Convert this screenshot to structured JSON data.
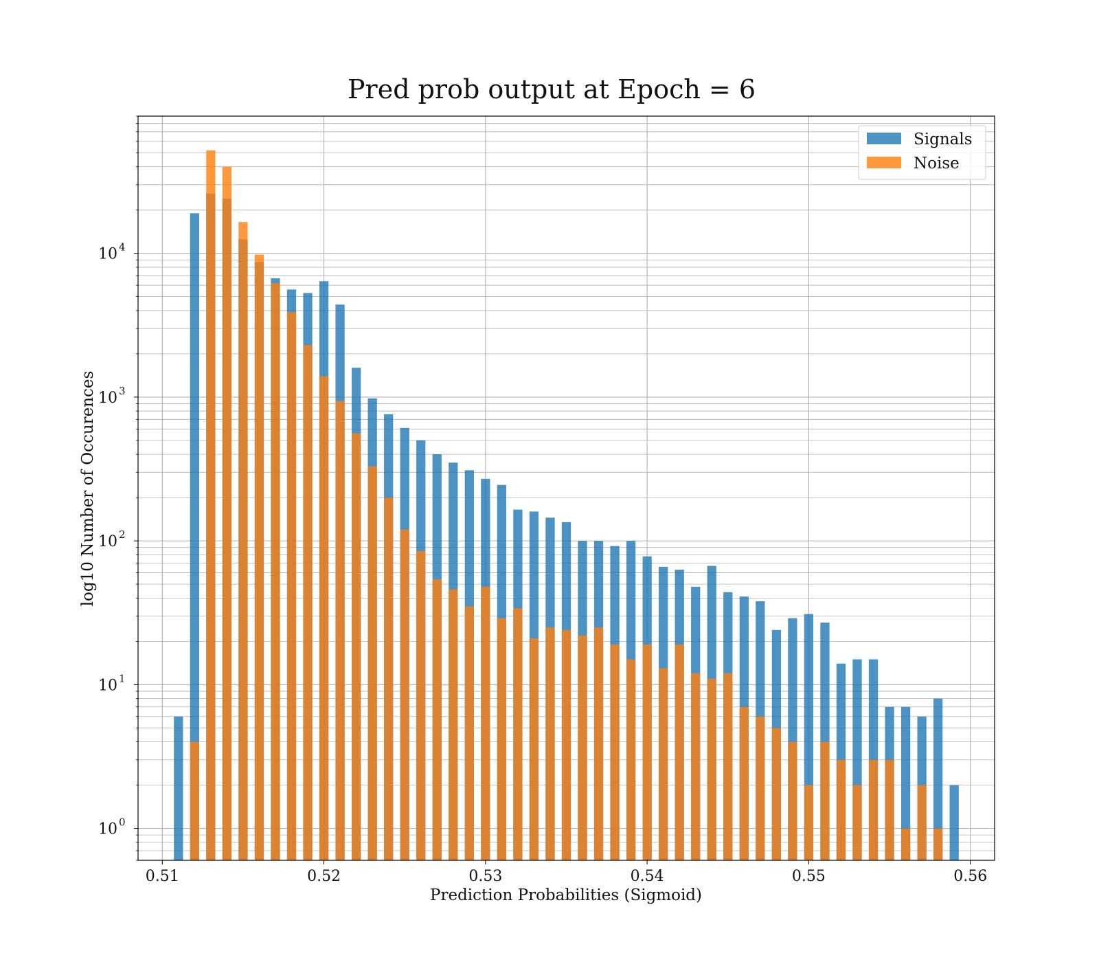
{
  "chart_data": {
    "type": "bar",
    "title": "Pred prob output at Epoch = 6",
    "xlabel": "Prediction Probabilities (Sigmoid)",
    "ylabel": "log10 Number of Occurences",
    "y_scale": "log",
    "xlim": [
      0.5085,
      0.5615
    ],
    "ylim": [
      0.6,
      90000
    ],
    "x_ticks": [
      {
        "value": 0.51,
        "label": "0.51"
      },
      {
        "value": 0.52,
        "label": "0.52"
      },
      {
        "value": 0.53,
        "label": "0.53"
      },
      {
        "value": 0.54,
        "label": "0.54"
      },
      {
        "value": 0.55,
        "label": "0.55"
      },
      {
        "value": 0.56,
        "label": "0.56"
      }
    ],
    "y_ticks": [
      {
        "value": 1,
        "base": "10",
        "exp": "0"
      },
      {
        "value": 10,
        "base": "10",
        "exp": "1"
      },
      {
        "value": 100,
        "base": "10",
        "exp": "2"
      },
      {
        "value": 1000,
        "base": "10",
        "exp": "3"
      },
      {
        "value": 10000,
        "base": "10",
        "exp": "4"
      }
    ],
    "grid": true,
    "legend_position": "top-right",
    "series": [
      {
        "name": "Signals",
        "color": "#1f77b4",
        "opacity": 0.8,
        "x": [
          0.511,
          0.512,
          0.513,
          0.514,
          0.515,
          0.516,
          0.517,
          0.518,
          0.519,
          0.52,
          0.521,
          0.522,
          0.523,
          0.524,
          0.525,
          0.526,
          0.527,
          0.528,
          0.529,
          0.53,
          0.531,
          0.532,
          0.533,
          0.534,
          0.535,
          0.536,
          0.537,
          0.538,
          0.539,
          0.54,
          0.541,
          0.542,
          0.543,
          0.544,
          0.545,
          0.546,
          0.547,
          0.548,
          0.549,
          0.55,
          0.551,
          0.552,
          0.553,
          0.554,
          0.555,
          0.556,
          0.557,
          0.558,
          0.559
        ],
        "values": [
          6,
          19000,
          26000,
          24000,
          12500,
          8700,
          6700,
          5600,
          5300,
          6400,
          4400,
          1600,
          980,
          760,
          610,
          500,
          400,
          350,
          310,
          270,
          245,
          165,
          160,
          145,
          135,
          100,
          100,
          92,
          100,
          78,
          66,
          63,
          48,
          67,
          44,
          41,
          38,
          24,
          29,
          31,
          27,
          14,
          15,
          15,
          7,
          7,
          6,
          8,
          2
        ]
      },
      {
        "name": "Noise",
        "color": "#ff7f0e",
        "opacity": 0.8,
        "x": [
          0.512,
          0.513,
          0.514,
          0.515,
          0.516,
          0.517,
          0.518,
          0.519,
          0.52,
          0.521,
          0.522,
          0.523,
          0.524,
          0.525,
          0.526,
          0.527,
          0.528,
          0.529,
          0.53,
          0.531,
          0.532,
          0.533,
          0.534,
          0.535,
          0.536,
          0.537,
          0.538,
          0.539,
          0.54,
          0.541,
          0.542,
          0.543,
          0.544,
          0.545,
          0.546,
          0.547,
          0.548,
          0.549,
          0.55,
          0.551,
          0.552,
          0.553,
          0.554,
          0.555,
          0.556,
          0.557,
          0.558
        ],
        "values": [
          4,
          52000,
          40000,
          16500,
          9800,
          6200,
          3900,
          2300,
          1400,
          940,
          560,
          330,
          200,
          120,
          85,
          54,
          46,
          35,
          48,
          29,
          34,
          21,
          25,
          24,
          22,
          25,
          19,
          15,
          19,
          13,
          19,
          12,
          11,
          12,
          7,
          6,
          5,
          4,
          2,
          4,
          3,
          2,
          3,
          3,
          1,
          2,
          1
        ]
      }
    ]
  }
}
